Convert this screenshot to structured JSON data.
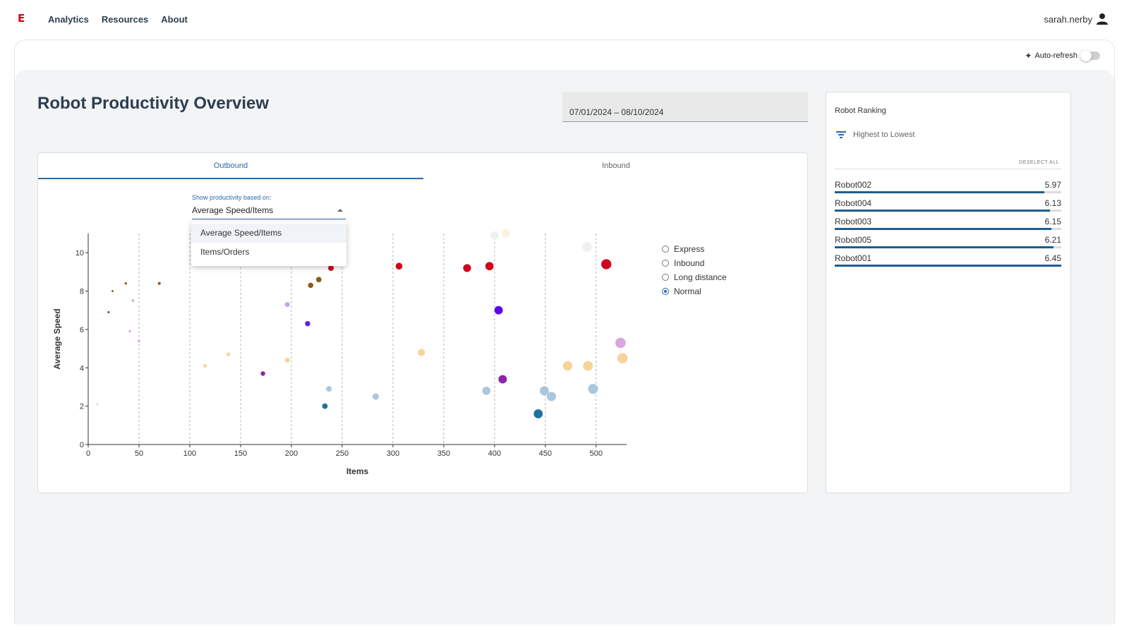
{
  "header": {
    "logo": "E",
    "nav": [
      "Analytics",
      "Resources",
      "About"
    ],
    "user": "sarah.nerby"
  },
  "toolbar": {
    "autorefresh_label": "Auto-refresh",
    "autorefresh_on": false
  },
  "page": {
    "title": "Robot Productivity Overview"
  },
  "daterange": {
    "value": "07/01/2024 – 08/10/2024"
  },
  "tabs": [
    {
      "label": "Outbound",
      "active": true
    },
    {
      "label": "Inbound",
      "active": false
    }
  ],
  "select": {
    "label": "Show productivity based on:",
    "value": "Average Speed/Items",
    "options": [
      "Average Speed/Items",
      "Items/Orders"
    ]
  },
  "legend": {
    "options": [
      "Express",
      "Inbound",
      "Long distance",
      "Normal"
    ],
    "selected": "Normal"
  },
  "ranking": {
    "title": "Robot Ranking",
    "sort_label": "Highest to Lowest",
    "deselect_label": "DESELECT ALL",
    "rows": [
      {
        "name": "Robot002",
        "value": "5.97",
        "fill": 0.925
      },
      {
        "name": "Robot004",
        "value": "6.13",
        "fill": 0.95
      },
      {
        "name": "Robot003",
        "value": "6.15",
        "fill": 0.955
      },
      {
        "name": "Robot005",
        "value": "6.21",
        "fill": 0.965
      },
      {
        "name": "Robot001",
        "value": "6.45",
        "fill": 1.0
      }
    ]
  },
  "chart_data": {
    "type": "scatter",
    "xlabel": "Items",
    "ylabel": "Average Speed",
    "xlim": [
      0,
      530
    ],
    "ylim": [
      0,
      11
    ],
    "xticks": [
      0,
      50,
      100,
      150,
      200,
      250,
      300,
      350,
      400,
      450,
      500
    ],
    "yticks": [
      0,
      2,
      4,
      6,
      8,
      10
    ],
    "grid": "vertical dashed",
    "points": [
      {
        "x": 9,
        "y": 2.1,
        "color": "#e3b5e3"
      },
      {
        "x": 20,
        "y": 6.9,
        "color": "#7a1fa2"
      },
      {
        "x": 24,
        "y": 8.0,
        "color": "#8b5a1a"
      },
      {
        "x": 37,
        "y": 8.4,
        "color": "#8b5a1a"
      },
      {
        "x": 41,
        "y": 5.9,
        "color": "#d9a6e0"
      },
      {
        "x": 44,
        "y": 7.5,
        "color": "#c3a3f0"
      },
      {
        "x": 50,
        "y": 5.4,
        "color": "#d9a6e0"
      },
      {
        "x": 70,
        "y": 8.4,
        "color": "#8b5a1a"
      },
      {
        "x": 115,
        "y": 4.1,
        "color": "#f7d49a"
      },
      {
        "x": 138,
        "y": 4.7,
        "color": "#f7d49a"
      },
      {
        "x": 172,
        "y": 3.7,
        "color": "#8e24aa"
      },
      {
        "x": 196,
        "y": 4.4,
        "color": "#f7d49a"
      },
      {
        "x": 196,
        "y": 7.3,
        "color": "#c3a3f0"
      },
      {
        "x": 216,
        "y": 6.3,
        "color": "#6a1fd0"
      },
      {
        "x": 219,
        "y": 8.3,
        "color": "#8b5a1a"
      },
      {
        "x": 227,
        "y": 8.6,
        "color": "#8b5a1a"
      },
      {
        "x": 233,
        "y": 2.0,
        "color": "#1f6fa0"
      },
      {
        "x": 237,
        "y": 2.9,
        "color": "#a9c7de"
      },
      {
        "x": 239,
        "y": 9.2,
        "color": "#d0021b"
      },
      {
        "x": 283,
        "y": 2.5,
        "color": "#a9c7de"
      },
      {
        "x": 306,
        "y": 9.3,
        "color": "#d0021b"
      },
      {
        "x": 328,
        "y": 4.8,
        "color": "#f7d49a"
      },
      {
        "x": 373,
        "y": 9.2,
        "color": "#d0021b"
      },
      {
        "x": 392,
        "y": 2.8,
        "color": "#a9c7de"
      },
      {
        "x": 395,
        "y": 9.3,
        "color": "#d0021b"
      },
      {
        "x": 400,
        "y": 10.9,
        "color": "#eef0f3"
      },
      {
        "x": 404,
        "y": 7.0,
        "color": "#6200ea"
      },
      {
        "x": 408,
        "y": 3.4,
        "color": "#8e24aa"
      },
      {
        "x": 411,
        "y": 11.0,
        "color": "#fbf1de"
      },
      {
        "x": 443,
        "y": 1.6,
        "color": "#1f6fa0"
      },
      {
        "x": 449,
        "y": 2.8,
        "color": "#a9c7de"
      },
      {
        "x": 456,
        "y": 2.5,
        "color": "#a9c7de"
      },
      {
        "x": 472,
        "y": 4.1,
        "color": "#f7d49a"
      },
      {
        "x": 491,
        "y": 10.3,
        "color": "#f0f0f0"
      },
      {
        "x": 492,
        "y": 4.1,
        "color": "#f7d49a"
      },
      {
        "x": 497,
        "y": 2.9,
        "color": "#a9c7de"
      },
      {
        "x": 510,
        "y": 9.4,
        "color": "#d0021b"
      },
      {
        "x": 524,
        "y": 5.3,
        "color": "#d9a6e0"
      },
      {
        "x": 526,
        "y": 4.5,
        "color": "#f7d49a"
      }
    ]
  }
}
